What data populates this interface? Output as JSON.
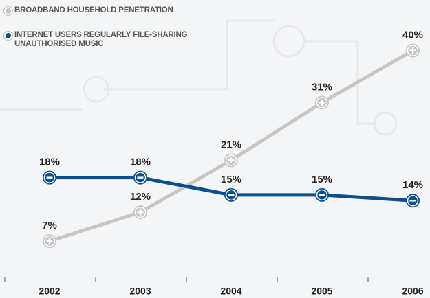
{
  "chart_data": {
    "type": "line",
    "categories": [
      "2002",
      "2003",
      "2004",
      "2005",
      "2006"
    ],
    "series": [
      {
        "name": "BROADBAND HOUSEHOLD PENETRATION",
        "color": "#c6c6c6",
        "marker": "plus",
        "values": [
          7,
          12,
          21,
          31,
          40
        ],
        "value_labels": [
          "7%",
          "12%",
          "21%",
          "31%",
          "40%"
        ]
      },
      {
        "name": "INTERNET USERS REGULARLY FILE-SHARING UNAUTHORISED MUSIC",
        "color": "#0b4f8c",
        "marker": "minus",
        "values": [
          18,
          18,
          15,
          15,
          14
        ],
        "value_labels": [
          "18%",
          "18%",
          "15%",
          "15%",
          "14%"
        ]
      }
    ],
    "ylim": [
      0,
      44
    ]
  }
}
